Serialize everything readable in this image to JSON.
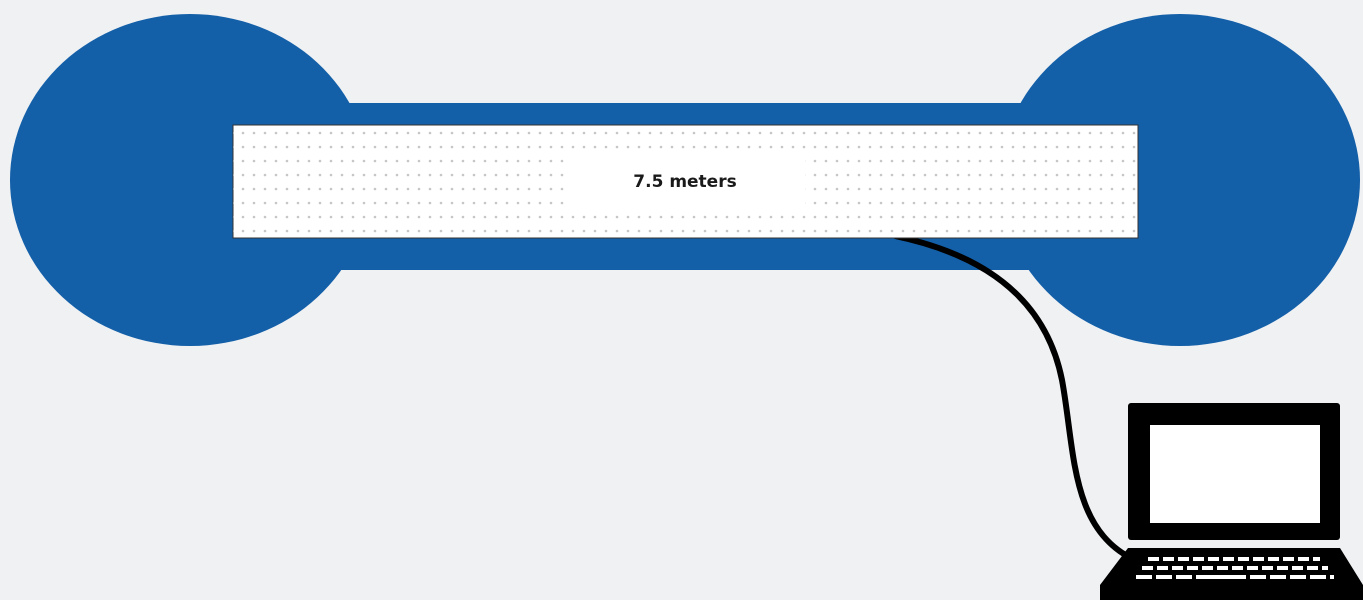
{
  "label": "7.5 meters"
}
